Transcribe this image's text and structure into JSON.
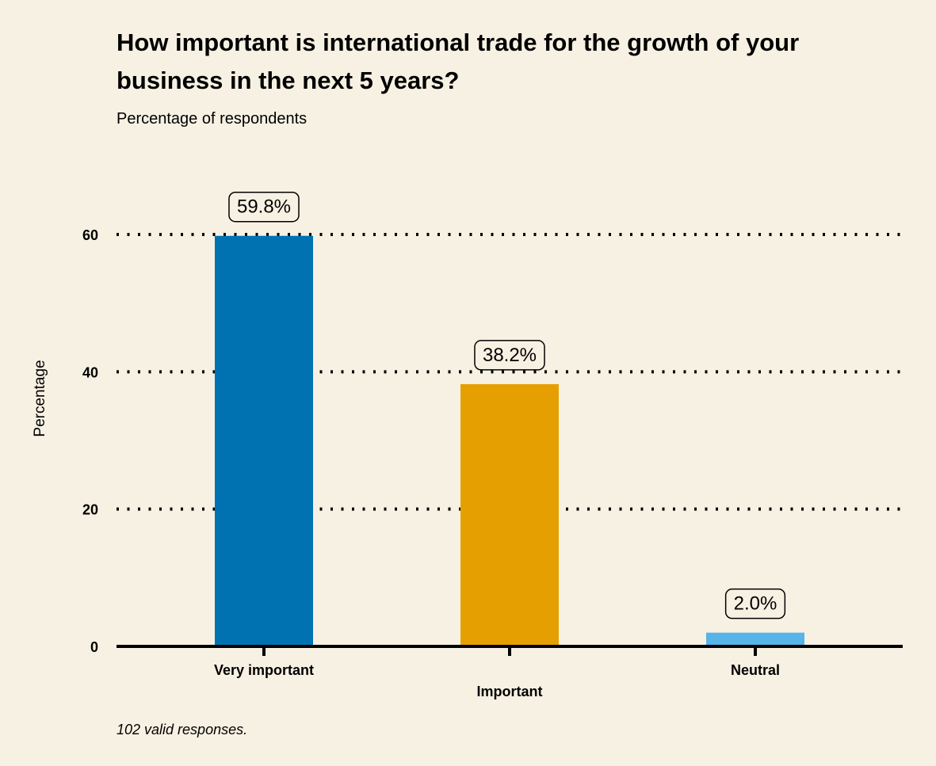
{
  "chart_data": {
    "type": "bar",
    "title": "How important is international trade for the growth of your business in the next 5 years?",
    "subtitle": "Percentage of respondents",
    "ylabel": "Percentage",
    "xlabel": "",
    "caption": "102 valid responses.",
    "categories": [
      "Very important",
      "Important",
      "Neutral"
    ],
    "values": [
      59.8,
      38.2,
      2.0
    ],
    "data_labels": [
      "59.8%",
      "38.2%",
      "2.0%"
    ],
    "colors": [
      "#0072b2",
      "#e69f00",
      "#56b4e9"
    ],
    "ylim": [
      0,
      60
    ],
    "yticks": [
      0,
      20,
      40,
      60
    ],
    "grid": "dotted horizontal",
    "legend": "none"
  }
}
